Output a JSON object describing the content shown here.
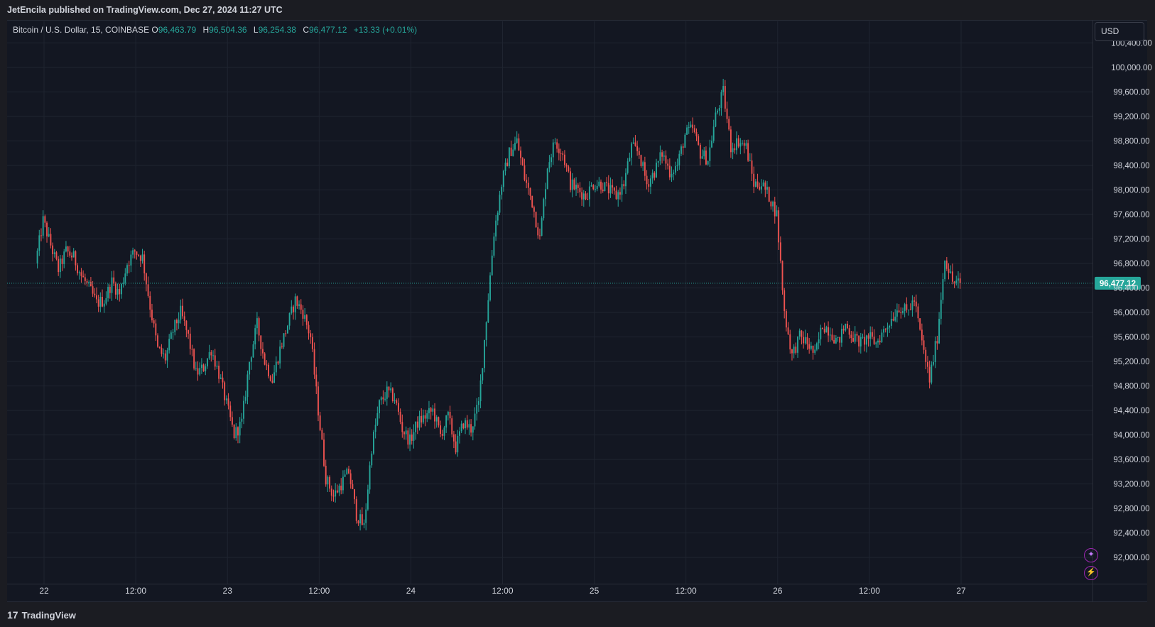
{
  "header": {
    "publisher_line": "JetEncila published on TradingView.com, Dec 27, 2024 11:27 UTC"
  },
  "legend": {
    "symbol": "Bitcoin / U.S. Dollar, 15, COINBASE",
    "o_label": "O",
    "o_value": "96,463.79",
    "h_label": "H",
    "h_value": "96,504.36",
    "l_label": "L",
    "l_value": "96,254.38",
    "c_label": "C",
    "c_value": "96,477.12",
    "change": "+13.33 (+0.01%)"
  },
  "toolbar": {
    "currency_label": "USD"
  },
  "footer": {
    "brand": "TradingView",
    "logo_mark": "17"
  },
  "icons": [
    "star-sparkle-icon",
    "lightning-icon"
  ],
  "colors": {
    "background": "#131722",
    "grid": "#1f2430",
    "up": "#26a69a",
    "down": "#ef5350",
    "text": "#d1d4dc",
    "last_price_badge": "#26a69a"
  },
  "chart_data": {
    "type": "candlestick",
    "symbol": "BTCUSD",
    "interval_minutes": 15,
    "x_tick_labels": [
      "22",
      "12:00",
      "23",
      "12:00",
      "24",
      "12:00",
      "25",
      "12:00",
      "26",
      "12:00",
      "27"
    ],
    "y_ticks": [
      92000,
      92400,
      92800,
      93200,
      93600,
      94000,
      94400,
      94800,
      95200,
      95600,
      96000,
      96400,
      96800,
      97200,
      97600,
      98000,
      98400,
      98800,
      99200,
      99600,
      100000,
      100400
    ],
    "y_tick_labels": [
      "92,000.00",
      "92,400.00",
      "92,800.00",
      "93,200.00",
      "93,600.00",
      "94,000.00",
      "94,400.00",
      "94,800.00",
      "95,200.00",
      "95,600.00",
      "96,000.00",
      "96,400.00",
      "96,800.00",
      "97,200.00",
      "97,600.00",
      "98,000.00",
      "98,400.00",
      "98,800.00",
      "99,200.00",
      "99,600.00",
      "100,000.00",
      "100,400.00"
    ],
    "ylim": [
      91600,
      100500
    ],
    "last_price": 96477.12,
    "last_price_label": "96,477.12",
    "price_path_hourly": [
      96800,
      97500,
      97100,
      96700,
      97000,
      96900,
      96600,
      96400,
      96150,
      96200,
      96500,
      96300,
      96800,
      97000,
      96900,
      96100,
      95400,
      95250,
      95700,
      96000,
      95600,
      95000,
      95100,
      95400,
      95000,
      94500,
      94000,
      94200,
      95200,
      95800,
      95200,
      94900,
      95400,
      95800,
      96200,
      96000,
      95600,
      94400,
      93300,
      93000,
      93200,
      93400,
      92700,
      92500,
      93800,
      94500,
      94700,
      94600,
      94100,
      93900,
      94200,
      94300,
      94400,
      94000,
      94300,
      93800,
      94200,
      94100,
      94500,
      95900,
      97300,
      98100,
      98600,
      98800,
      98200,
      97800,
      97200,
      98400,
      98800,
      98600,
      98100,
      98000,
      97900,
      98100,
      98100,
      98000,
      97900,
      98100,
      98700,
      98600,
      98100,
      98300,
      98600,
      98300,
      98400,
      98900,
      99000,
      98600,
      98500,
      99200,
      99600,
      98700,
      98800,
      98700,
      98100,
      98100,
      97900,
      97600,
      96000,
      95300,
      95600,
      95500,
      95300,
      95800,
      95700,
      95500,
      95800,
      95600,
      95500,
      95600,
      95500,
      95700,
      95900,
      96100,
      96000,
      96200,
      95500,
      94900,
      95600,
      96900,
      96500,
      96477
    ]
  }
}
